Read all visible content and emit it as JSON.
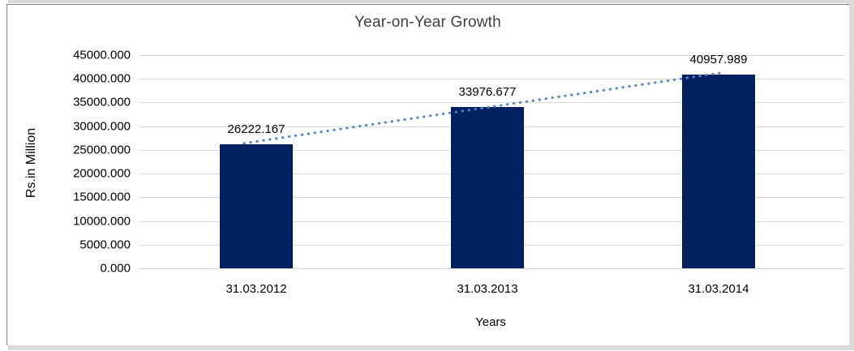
{
  "chart_data": {
    "type": "bar",
    "title": "Year-on-Year Growth",
    "xlabel": "Years",
    "ylabel": "Rs.in Million",
    "categories": [
      "31.03.2012",
      "31.03.2013",
      "31.03.2014"
    ],
    "values": [
      26222.167,
      33976.677,
      40957.989
    ],
    "data_labels": [
      "26222.167",
      "33976.677",
      "40957.989"
    ],
    "y_ticks": [
      "45000.000",
      "40000.000",
      "35000.000",
      "30000.000",
      "25000.000",
      "20000.000",
      "15000.000",
      "10000.000",
      "5000.000",
      "0.000"
    ],
    "y_tick_values": [
      45000,
      40000,
      35000,
      30000,
      25000,
      20000,
      15000,
      10000,
      5000,
      0
    ],
    "ylim": [
      0,
      45000
    ],
    "grid": "horizontal",
    "legend": "none",
    "trendline": {
      "type": "linear",
      "style": "dotted",
      "color": "#4f86c6"
    },
    "colors": {
      "bar": "#002060",
      "gridline": "#d9d9d9",
      "title_text": "#404040",
      "label_text": "#000000",
      "frame_border": "#808080",
      "frame_strip": "#d9d9d9"
    }
  }
}
